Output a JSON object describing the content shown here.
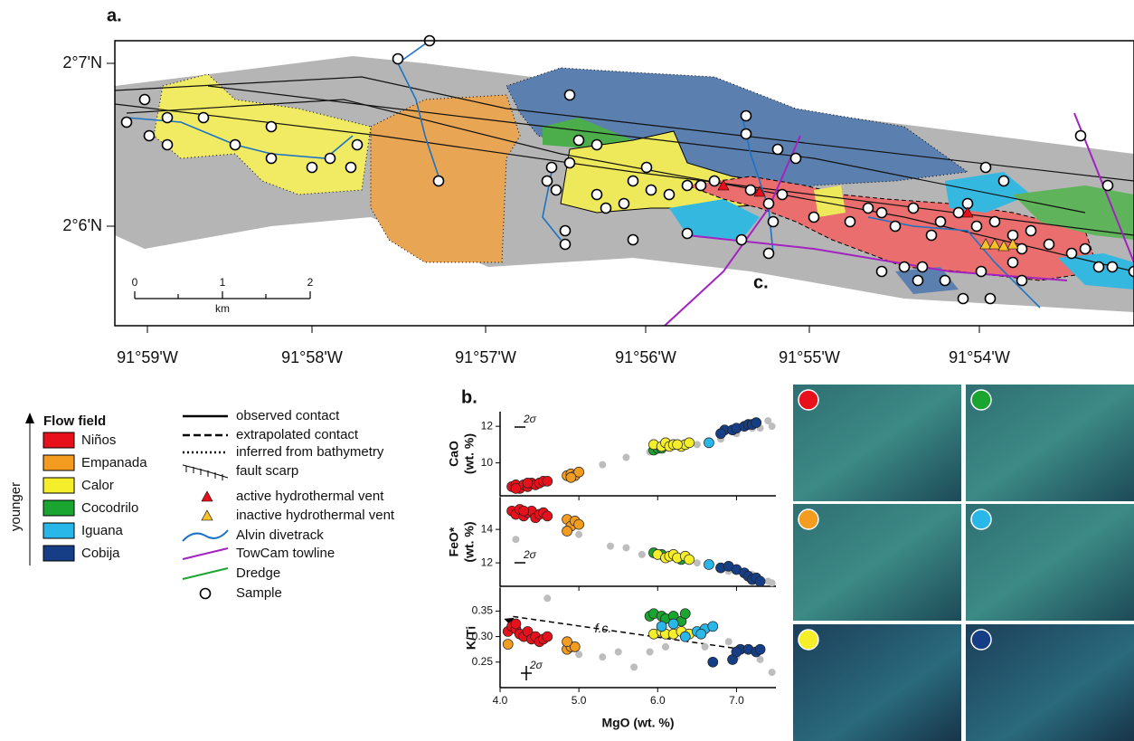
{
  "panel_labels": [
    "a.",
    "b.",
    "c."
  ],
  "map": {
    "lat_labels": [
      "2°7'N",
      "2°6'N"
    ],
    "lon_labels": [
      "91°59'W",
      "91°58'W",
      "91°57'W",
      "91°56'W",
      "91°55'W",
      "91°54'W"
    ],
    "scale_labels": [
      "0",
      "1",
      "2"
    ],
    "scale_unit": "km"
  },
  "legend": {
    "title": "Flow field",
    "order_label": "younger",
    "flow_fields": [
      {
        "name": "Niños",
        "color": "#e8101a"
      },
      {
        "name": "Empanada",
        "color": "#f39c1f"
      },
      {
        "name": "Calor",
        "color": "#f5ee2a"
      },
      {
        "name": "Cocodrilo",
        "color": "#1aa531"
      },
      {
        "name": "Iguana",
        "color": "#29b6e8"
      },
      {
        "name": "Cobija",
        "color": "#163e86"
      }
    ],
    "symbols": [
      "observed contact",
      "extrapolated contact",
      "inferred from bathymetry",
      "fault scarp",
      "active hydrothermal vent",
      "inactive hydrothermal vent",
      "Alvin divetrack",
      "TowCam towline",
      "Dredge",
      "Sample"
    ]
  },
  "chart_data": [
    {
      "type": "scatter",
      "ylabel": [
        "CaO",
        "(wt. %)"
      ],
      "annotation": "2σ",
      "xlim": [
        4.0,
        7.5
      ],
      "ylim": [
        8.2,
        12.8
      ],
      "yticks": [
        10,
        12
      ],
      "series": [
        {
          "color": "#bdbdbd",
          "x": [
            5.3,
            5.6,
            5.9,
            6.5,
            6.8,
            7.0,
            7.2,
            7.4,
            7.45,
            7.3
          ],
          "values": [
            9.9,
            10.3,
            10.6,
            11.0,
            11.3,
            11.6,
            11.9,
            12.3,
            12.0,
            11.9
          ]
        },
        {
          "color": "#e8101a",
          "x": [
            4.15,
            4.2,
            4.25,
            4.3,
            4.35,
            4.4,
            4.45,
            4.5,
            4.55,
            4.6,
            4.2,
            4.35
          ],
          "values": [
            8.7,
            8.8,
            8.6,
            8.8,
            8.7,
            8.9,
            8.8,
            8.9,
            9.0,
            9.0,
            8.6,
            8.9
          ]
        },
        {
          "color": "#f39c1f",
          "x": [
            4.85,
            4.9,
            4.95,
            5.0,
            4.9
          ],
          "values": [
            9.3,
            9.4,
            9.3,
            9.5,
            9.2
          ]
        },
        {
          "color": "#1aa531",
          "x": [
            5.95,
            6.0,
            6.05
          ],
          "values": [
            10.7,
            10.8,
            10.8
          ]
        },
        {
          "color": "#f5ee2a",
          "x": [
            5.95,
            6.05,
            6.1,
            6.15,
            6.2,
            6.3,
            6.35,
            6.4,
            6.25
          ],
          "values": [
            11.0,
            10.9,
            11.1,
            10.9,
            11.0,
            10.9,
            11.0,
            11.1,
            11.0
          ]
        },
        {
          "color": "#29b6e8",
          "x": [
            6.65
          ],
          "values": [
            11.1
          ]
        },
        {
          "color": "#163e86",
          "x": [
            6.85,
            6.95,
            7.0,
            7.1,
            7.15,
            7.2,
            7.25,
            6.8
          ],
          "values": [
            11.8,
            11.8,
            11.9,
            12.0,
            12.1,
            12.1,
            12.2,
            11.6
          ]
        }
      ]
    },
    {
      "type": "scatter",
      "ylabel": [
        "FeO*",
        "(wt. %)"
      ],
      "annotation": "2σ",
      "xlim": [
        4.0,
        7.5
      ],
      "ylim": [
        10.6,
        15.9
      ],
      "yticks": [
        12,
        14
      ],
      "series": [
        {
          "color": "#bdbdbd",
          "x": [
            4.2,
            5.0,
            5.4,
            5.6,
            5.8,
            6.5,
            6.9,
            7.2,
            7.4,
            7.45
          ],
          "values": [
            13.4,
            13.7,
            13.0,
            12.9,
            12.5,
            12.0,
            11.5,
            11.3,
            10.9,
            10.8
          ]
        },
        {
          "color": "#e8101a",
          "x": [
            4.15,
            4.2,
            4.25,
            4.3,
            4.35,
            4.4,
            4.45,
            4.5,
            4.55,
            4.6,
            4.3
          ],
          "values": [
            15.1,
            14.9,
            15.2,
            14.8,
            15.0,
            15.1,
            14.7,
            14.9,
            15.0,
            14.8,
            15.1
          ]
        },
        {
          "color": "#f39c1f",
          "x": [
            4.85,
            4.9,
            4.95,
            5.0,
            4.85
          ],
          "values": [
            14.6,
            14.2,
            14.5,
            14.3,
            13.9
          ]
        },
        {
          "color": "#1aa531",
          "x": [
            5.95,
            6.05,
            6.3
          ],
          "values": [
            12.6,
            12.5,
            12.2
          ]
        },
        {
          "color": "#f5ee2a",
          "x": [
            6.0,
            6.1,
            6.15,
            6.2,
            6.25,
            6.35,
            6.4
          ],
          "values": [
            12.5,
            12.3,
            12.4,
            12.5,
            12.3,
            12.4,
            12.2
          ]
        },
        {
          "color": "#29b6e8",
          "x": [
            6.65
          ],
          "values": [
            11.9
          ]
        },
        {
          "color": "#163e86",
          "x": [
            6.8,
            6.9,
            7.0,
            7.1,
            7.15,
            7.2,
            7.25,
            7.3
          ],
          "values": [
            11.7,
            11.8,
            11.6,
            11.4,
            11.2,
            11.0,
            11.1,
            10.9
          ]
        }
      ]
    },
    {
      "type": "scatter",
      "ylabel": [
        "K/Ti"
      ],
      "annotation": "2σ",
      "xlabel": "MgO (wt. %)",
      "xlim": [
        4.0,
        7.5
      ],
      "ylim": [
        0.2,
        0.395
      ],
      "xticks": [
        {
          "value": 4,
          "label": "4.0"
        },
        {
          "value": 5,
          "label": "5.0"
        },
        {
          "value": 6,
          "label": "6.0"
        },
        {
          "value": 7,
          "label": "7.0"
        }
      ],
      "yticks": [
        0.25,
        {
          "value": 0.3,
          "label": "0.30"
        },
        0.35
      ],
      "trend_label": "f.c.",
      "trend": {
        "x": [
          4.05,
          7.3
        ],
        "values": [
          0.335,
          0.27
        ]
      },
      "series": [
        {
          "color": "#bdbdbd",
          "x": [
            4.6,
            5.0,
            5.3,
            5.5,
            5.7,
            5.9,
            6.1,
            6.6,
            7.0,
            7.3,
            7.45,
            6.9
          ],
          "values": [
            0.375,
            0.265,
            0.26,
            0.27,
            0.24,
            0.27,
            0.28,
            0.28,
            0.26,
            0.255,
            0.23,
            0.29
          ]
        },
        {
          "color": "#e8101a",
          "x": [
            4.1,
            4.15,
            4.2,
            4.25,
            4.3,
            4.35,
            4.4,
            4.45,
            4.5,
            4.55,
            4.6,
            4.2
          ],
          "values": [
            0.31,
            0.32,
            0.315,
            0.305,
            0.3,
            0.31,
            0.295,
            0.3,
            0.29,
            0.295,
            0.3,
            0.325
          ]
        },
        {
          "color": "#f39c1f",
          "x": [
            4.1,
            4.85,
            4.9,
            4.95,
            4.85
          ],
          "values": [
            0.285,
            0.275,
            0.28,
            0.28,
            0.29
          ]
        },
        {
          "color": "#1aa531",
          "x": [
            5.9,
            5.95,
            6.05,
            6.1,
            6.2,
            6.3,
            6.35
          ],
          "values": [
            0.34,
            0.345,
            0.34,
            0.335,
            0.34,
            0.33,
            0.345
          ]
        },
        {
          "color": "#f5ee2a",
          "x": [
            5.95,
            6.05,
            6.1,
            6.2,
            6.3,
            6.4
          ],
          "values": [
            0.305,
            0.31,
            0.305,
            0.305,
            0.31,
            0.305
          ]
        },
        {
          "color": "#29b6e8",
          "x": [
            6.05,
            6.2,
            6.35,
            6.5,
            6.6,
            6.7,
            6.55
          ],
          "values": [
            0.32,
            0.325,
            0.3,
            0.31,
            0.315,
            0.32,
            0.305
          ]
        },
        {
          "color": "#163e86",
          "x": [
            6.7,
            6.95,
            7.05,
            7.15,
            7.25,
            7.3,
            7.0
          ],
          "values": [
            0.25,
            0.255,
            0.275,
            0.275,
            0.27,
            0.275,
            0.27
          ]
        }
      ]
    }
  ],
  "photos": {
    "colors": [
      "#e8101a",
      "#1aa531",
      "#f39c1f",
      "#29b6e8",
      "#f5ee2a",
      "#163e86"
    ]
  }
}
